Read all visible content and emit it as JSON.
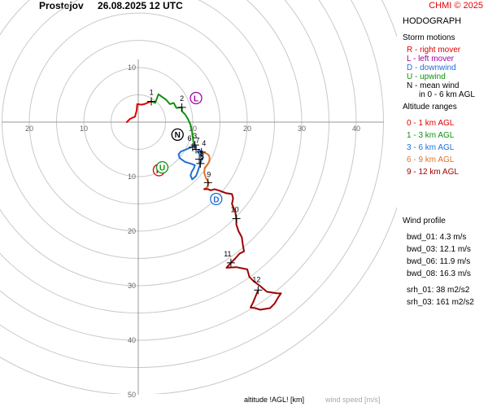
{
  "header": {
    "station": "Prostejov",
    "datetime": "26.08.2025 12 UTC"
  },
  "copyright": "CHMI © 2025",
  "panel": {
    "title": "HODOGRAPH",
    "storm_motions_title": "Storm motions",
    "storm_items": [
      {
        "text": "R - right mover",
        "color": "#e00000"
      },
      {
        "text": "L - left mover",
        "color": "#a000a0"
      },
      {
        "text": "D - downwind",
        "color": "#1e6fd8"
      },
      {
        "text": "U - upwind",
        "color": "#109010"
      },
      {
        "text": "N - mean wind",
        "color": "#000000"
      },
      {
        "text": "in 0 - 6 km AGL",
        "color": "#000000"
      }
    ],
    "altitude_title": "Altitude ranges",
    "altitude_items": [
      {
        "text": "0 - 1 km AGL",
        "color": "#e00000"
      },
      {
        "text": "1 - 3 km AGL",
        "color": "#109010"
      },
      {
        "text": "3 - 6 km AGL",
        "color": "#1e6fd8"
      },
      {
        "text": "6 - 9 km AGL",
        "color": "#e07030"
      },
      {
        "text": "9 - 12 km AGL",
        "color": "#a00000"
      }
    ],
    "wind_profile_title": "Wind profile",
    "wind_profile": [
      "bwd_01: 4.3 m/s",
      "bwd_03: 12.1 m/s",
      "bwd_06: 11.9 m/s",
      "bwd_08: 16.3 m/s"
    ],
    "srh": [
      "srh_01: 38 m2/s2",
      "srh_03: 161 m2/s2"
    ]
  },
  "footer": {
    "altitude_label": "altitude !AGL! [km]",
    "speed_label": "wind speed [m/s]"
  },
  "chart_data": {
    "type": "scatter",
    "xlim": [
      -25,
      45
    ],
    "ylim": [
      -50,
      10
    ],
    "axis_ticks": {
      "x": [
        {
          "v": -20,
          "label": "20"
        },
        {
          "v": -10,
          "label": "10"
        },
        {
          "v": 10,
          "label": "10"
        },
        {
          "v": 20,
          "label": "20"
        },
        {
          "v": 30,
          "label": "30"
        },
        {
          "v": 40,
          "label": "40"
        }
      ],
      "y": [
        {
          "v": 10,
          "label": "10"
        },
        {
          "v": -10,
          "label": "10"
        },
        {
          "v": -20,
          "label": "20"
        },
        {
          "v": -30,
          "label": "30"
        },
        {
          "v": -40,
          "label": "40"
        },
        {
          "v": -50,
          "label": "50"
        }
      ]
    },
    "ring_step": 5,
    "ring_max": 50,
    "series": [
      {
        "range": "0 - 1 km AGL",
        "color": "#e00000",
        "points": [
          [
            -2.1,
            0.0
          ],
          [
            -1.5,
            0.6
          ],
          [
            -0.6,
            1.0
          ],
          [
            -0.3,
            2.1
          ],
          [
            -0.2,
            3.3
          ],
          [
            0.6,
            3.2
          ],
          [
            1.1,
            3.3
          ],
          [
            1.8,
            3.6
          ],
          [
            2.4,
            3.8
          ]
        ]
      },
      {
        "range": "1 - 3 km AGL",
        "color": "#109010",
        "points": [
          [
            2.4,
            3.8
          ],
          [
            3.1,
            3.5
          ],
          [
            3.7,
            5.1
          ],
          [
            4.4,
            4.6
          ],
          [
            5.1,
            4.1
          ],
          [
            5.8,
            3.3
          ],
          [
            6.5,
            3.5
          ],
          [
            7.0,
            2.6
          ],
          [
            8.0,
            2.7
          ],
          [
            8.0,
            2.0
          ],
          [
            8.6,
            1.4
          ],
          [
            9.1,
            0.6
          ],
          [
            9.6,
            -0.5
          ],
          [
            9.9,
            -1.8
          ],
          [
            10.1,
            -3.6
          ],
          [
            10.4,
            -4.2
          ]
        ]
      },
      {
        "range": "3 - 6 km AGL",
        "color": "#1e6fd8",
        "points": [
          [
            10.4,
            -4.2
          ],
          [
            10.0,
            -4.5
          ],
          [
            8.8,
            -5.0
          ],
          [
            7.8,
            -5.4
          ],
          [
            7.4,
            -5.9
          ],
          [
            7.6,
            -6.6
          ],
          [
            8.6,
            -7.3
          ],
          [
            9.6,
            -7.6
          ],
          [
            10.4,
            -7.9
          ],
          [
            10.2,
            -8.5
          ],
          [
            9.8,
            -9.1
          ],
          [
            9.6,
            -9.8
          ],
          [
            9.9,
            -10.5
          ],
          [
            10.6,
            -9.9
          ],
          [
            10.9,
            -9.1
          ],
          [
            11.3,
            -7.9
          ],
          [
            11.6,
            -7.0
          ],
          [
            11.9,
            -6.4
          ],
          [
            11.3,
            -6.0
          ],
          [
            10.9,
            -5.4
          ],
          [
            11.1,
            -5.1
          ],
          [
            11.6,
            -5.5
          ]
        ]
      },
      {
        "range": "6 - 9 km AGL",
        "color": "#e07030",
        "points": [
          [
            11.6,
            -5.5
          ],
          [
            12.4,
            -5.7
          ],
          [
            12.9,
            -6.0
          ],
          [
            13.1,
            -6.5
          ],
          [
            13.0,
            -7.3
          ],
          [
            12.6,
            -7.9
          ],
          [
            12.2,
            -8.4
          ],
          [
            12.1,
            -9.3
          ],
          [
            12.4,
            -10.2
          ],
          [
            12.9,
            -11.1
          ],
          [
            12.7,
            -11.9
          ],
          [
            12.1,
            -12.3
          ]
        ]
      },
      {
        "range": "9 - 12 km AGL",
        "color": "#a00000",
        "points": [
          [
            12.1,
            -12.3
          ],
          [
            12.8,
            -12.3
          ],
          [
            13.3,
            -12.5
          ],
          [
            14.0,
            -12.3
          ],
          [
            15.0,
            -12.6
          ],
          [
            16.0,
            -13.0
          ],
          [
            17.2,
            -13.2
          ],
          [
            17.4,
            -14.0
          ],
          [
            17.2,
            -15.0
          ],
          [
            17.8,
            -16.5
          ],
          [
            18.0,
            -17.7
          ],
          [
            18.0,
            -18.8
          ],
          [
            18.4,
            -20.0
          ],
          [
            19.0,
            -21.1
          ],
          [
            19.2,
            -22.5
          ],
          [
            19.4,
            -23.7
          ],
          [
            18.6,
            -24.1
          ],
          [
            17.8,
            -25.0
          ],
          [
            17.0,
            -25.8
          ],
          [
            16.2,
            -26.7
          ],
          [
            18.0,
            -26.6
          ],
          [
            20.0,
            -27.0
          ],
          [
            20.4,
            -28.4
          ],
          [
            21.2,
            -29.2
          ],
          [
            22.3,
            -30.0
          ],
          [
            23.6,
            -31.1
          ],
          [
            25.5,
            -31.4
          ],
          [
            26.2,
            -31.4
          ],
          [
            25.7,
            -32.1
          ],
          [
            25.0,
            -33.3
          ],
          [
            24.2,
            -34.1
          ],
          [
            22.4,
            -34.4
          ],
          [
            21.4,
            -34.1
          ],
          [
            20.6,
            -34.0
          ],
          [
            21.1,
            -33.0
          ],
          [
            21.5,
            -32.0
          ],
          [
            22.0,
            -30.8
          ]
        ]
      }
    ],
    "height_markers": [
      {
        "label": "1",
        "x": 2.4,
        "y": 3.8,
        "dx": 0,
        "dy": -8
      },
      {
        "label": "2",
        "x": 8.0,
        "y": 2.7,
        "dx": 0,
        "dy": -8
      },
      {
        "label": "3",
        "x": 10.4,
        "y": -4.2,
        "dx": 0,
        "dy": -8
      },
      {
        "label": "4",
        "x": 11.6,
        "y": -5.5,
        "dx": 3,
        "dy": -8
      },
      {
        "label": "5",
        "x": 11.2,
        "y": -6.8,
        "dx": 3,
        "dy": -4
      },
      {
        "label": "6",
        "x": 10.0,
        "y": -4.6,
        "dx": -4,
        "dy": -8
      },
      {
        "label": "7",
        "x": 10.6,
        "y": -5.0,
        "dx": 2,
        "dy": -8
      },
      {
        "label": "8",
        "x": 11.4,
        "y": -7.6,
        "dx": 2,
        "dy": -6
      },
      {
        "label": "9",
        "x": 12.8,
        "y": -11.1,
        "dx": 1,
        "dy": -7
      },
      {
        "label": "10",
        "x": 18.0,
        "y": -17.7,
        "dx": -2,
        "dy": -8
      },
      {
        "label": "11",
        "x": 17.0,
        "y": -25.8,
        "dx": -4,
        "dy": -8
      },
      {
        "label": "12",
        "x": 22.0,
        "y": -30.8,
        "dx": -2,
        "dy": -10
      }
    ],
    "storm_motions": [
      {
        "code": "R",
        "x": 3.8,
        "y": -8.8,
        "color": "#e00000"
      },
      {
        "code": "U",
        "x": 4.4,
        "y": -8.3,
        "color": "#109010"
      },
      {
        "code": "L",
        "x": 10.6,
        "y": 4.4,
        "color": "#a000a0"
      },
      {
        "code": "D",
        "x": 14.3,
        "y": -14.1,
        "color": "#1e6fd8"
      },
      {
        "code": "N",
        "x": 7.2,
        "y": -2.3,
        "color": "#000000"
      }
    ]
  }
}
